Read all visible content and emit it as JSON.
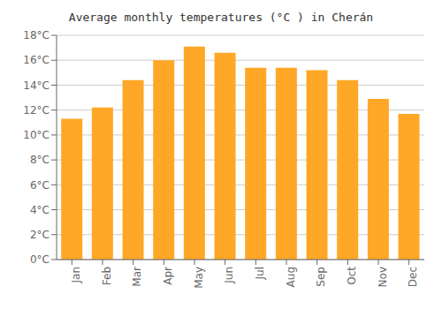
{
  "chart_data": {
    "type": "bar",
    "title": "Average monthly temperatures (°C ) in Cherán",
    "categories": [
      "Jan",
      "Feb",
      "Mar",
      "Apr",
      "May",
      "Jun",
      "Jul",
      "Aug",
      "Sep",
      "Oct",
      "Nov",
      "Dec"
    ],
    "values": [
      11.3,
      12.2,
      14.4,
      16.0,
      17.1,
      16.6,
      15.4,
      15.4,
      15.2,
      14.4,
      12.9,
      11.7
    ],
    "color": "#FFA726",
    "ylim": [
      0,
      18
    ],
    "yticks": [
      {
        "value": 0,
        "label": "0°C"
      },
      {
        "value": 2,
        "label": "2°C"
      },
      {
        "value": 4,
        "label": "4°C"
      },
      {
        "value": 6,
        "label": "6°C"
      },
      {
        "value": 8,
        "label": "8°C"
      },
      {
        "value": 10,
        "label": "10°C"
      },
      {
        "value": 12,
        "label": "12°C"
      },
      {
        "value": 14,
        "label": "14°C"
      },
      {
        "value": 16,
        "label": "16°C"
      },
      {
        "value": 18,
        "label": "18°C"
      }
    ],
    "grid": true
  }
}
